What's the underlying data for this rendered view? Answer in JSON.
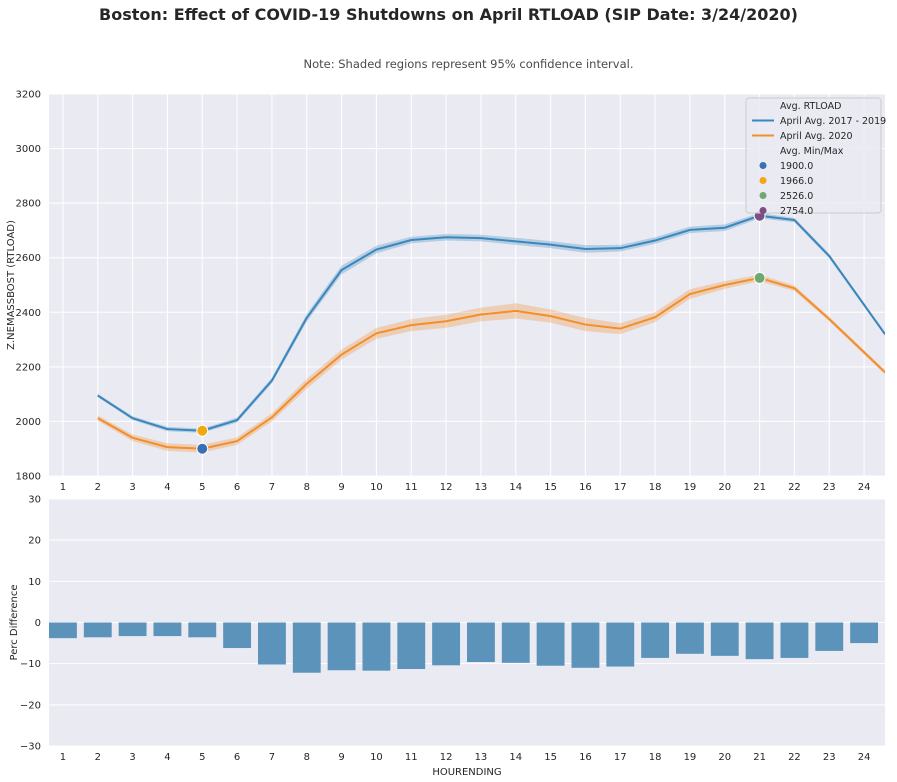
{
  "title": "Boston: Effect of COVID-19 Shutdowns on April RTLOAD (SIP Date: 3/24/2020)",
  "subtitle": "Note: Shaded regions represent 95% confidence interval.",
  "chart_data": [
    {
      "type": "line",
      "ylabel": "Z.NEMASSBOST (RTLOAD)",
      "xlabel": "",
      "ylim": [
        1800,
        3200
      ],
      "yticks": [
        1800,
        2000,
        2200,
        2400,
        2600,
        2800,
        3000,
        3200
      ],
      "x": [
        1,
        2,
        3,
        4,
        5,
        6,
        7,
        8,
        9,
        10,
        11,
        12,
        13,
        14,
        15,
        16,
        17,
        18,
        19,
        20,
        21,
        22,
        23,
        24
      ],
      "legend_position": "top-right",
      "legend": {
        "title_lines": "Avg. RTLOAD",
        "marker_title": "Avg. Min/Max"
      },
      "series": [
        {
          "name": "April Avg. 2017 - 2019",
          "color": "#3a87be",
          "x": [
            2,
            3,
            4,
            5,
            6,
            7,
            8,
            9,
            10,
            11,
            12,
            13,
            14,
            15,
            16,
            17,
            18,
            19,
            20,
            21,
            22,
            23,
            24.6
          ],
          "values": [
            2095,
            2012,
            1972,
            1966,
            2005,
            2150,
            2380,
            2555,
            2630,
            2665,
            2675,
            2672,
            2660,
            2648,
            2632,
            2635,
            2663,
            2702,
            2710,
            2754,
            2738,
            2606,
            2320
          ],
          "ci_halfwidth": [
            6,
            7,
            8,
            8,
            9,
            10,
            14,
            16,
            14,
            12,
            12,
            12,
            13,
            13,
            14,
            12,
            12,
            12,
            12,
            10,
            8,
            8,
            6
          ]
        },
        {
          "name": "April Avg. 2020",
          "color": "#f28e2b",
          "x": [
            2,
            3,
            4,
            5,
            6,
            7,
            8,
            9,
            10,
            11,
            12,
            13,
            14,
            15,
            16,
            17,
            18,
            19,
            20,
            21,
            22,
            23,
            24.6
          ],
          "values": [
            2012,
            1940,
            1906,
            1900,
            1928,
            2015,
            2138,
            2245,
            2323,
            2353,
            2367,
            2392,
            2405,
            2386,
            2355,
            2340,
            2382,
            2467,
            2500,
            2526,
            2488,
            2375,
            2180
          ],
          "ci_halfwidth": [
            10,
            12,
            14,
            14,
            14,
            15,
            18,
            18,
            20,
            22,
            24,
            25,
            28,
            24,
            24,
            20,
            18,
            18,
            14,
            12,
            10,
            8,
            8
          ]
        }
      ],
      "markers": [
        {
          "label": "1900.0",
          "x": 5,
          "y": 1900,
          "color": "#3b6fb5"
        },
        {
          "label": "1966.0",
          "x": 5,
          "y": 1966,
          "color": "#f3a712"
        },
        {
          "label": "2526.0",
          "x": 21,
          "y": 2526,
          "color": "#6fa870"
        },
        {
          "label": "2754.0",
          "x": 21,
          "y": 2754,
          "color": "#7b4f84"
        }
      ]
    },
    {
      "type": "bar",
      "ylabel": "Perc Difference",
      "xlabel": "HOURENDING",
      "ylim": [
        -30,
        30
      ],
      "yticks": [
        -30,
        -20,
        -10,
        0,
        10,
        20,
        30
      ],
      "ytick_labels": [
        "−30",
        "−20",
        "−10",
        "0",
        "10",
        "20",
        "30"
      ],
      "categories": [
        "1",
        "2",
        "3",
        "4",
        "5",
        "6",
        "7",
        "8",
        "9",
        "10",
        "11",
        "12",
        "13",
        "14",
        "15",
        "16",
        "17",
        "18",
        "19",
        "20",
        "21",
        "22",
        "23",
        "24"
      ],
      "values": [
        -3.8,
        -3.6,
        -3.3,
        -3.3,
        -3.6,
        -6.2,
        -10.2,
        -12.2,
        -11.6,
        -11.7,
        -11.3,
        -10.4,
        -9.6,
        -9.8,
        -10.5,
        -11.0,
        -10.7,
        -8.6,
        -7.6,
        -8.1,
        -8.9,
        -8.6,
        -6.9,
        -5.0
      ],
      "color": "#5b93bb"
    }
  ]
}
